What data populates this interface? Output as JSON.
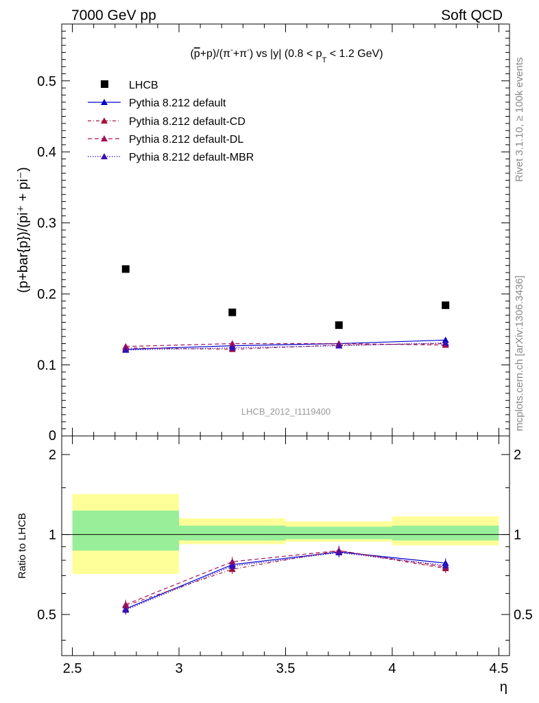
{
  "header": {
    "left": "7000 GeV pp",
    "right": "Soft QCD"
  },
  "side_labels": {
    "rivet": "Rivet 3.1.10, ≥ 100k events",
    "mcplots": "mcplots.cern.ch [arXiv:1306.3436]"
  },
  "chart_data": [
    {
      "panel": "main",
      "type": "scatter",
      "title_parts": {
        "pre": "(",
        "pbar": "p",
        "mid": "+p)/(π",
        "m1": "-",
        "plus": "+π",
        "m2": "-",
        "post": ") vs |y| (0.8 < p",
        "sub": "T",
        "tail": " < 1.2 GeV)"
      },
      "ylabel": "(p+bar{p})/(pi⁺ + pi⁻)",
      "xlabel": "",
      "ylim": [
        0,
        0.58
      ],
      "xlim": [
        2.45,
        4.55
      ],
      "yticks": [
        0.1,
        0.2,
        0.3,
        0.4,
        0.5
      ],
      "ytick_labels": [
        "0.1",
        "0.2",
        "0.3",
        "0.4",
        "0.5"
      ],
      "y0_label": "0",
      "watermark": "LHCB_2012_I1119400",
      "legend_position": "top-left",
      "bins": [
        [
          2.5,
          3.0
        ],
        [
          3.0,
          3.5
        ],
        [
          3.5,
          4.0
        ],
        [
          4.0,
          4.5
        ]
      ],
      "x": [
        2.75,
        3.25,
        3.75,
        4.25
      ],
      "data": {
        "name": "LHCB",
        "values": [
          0.235,
          0.174,
          0.156,
          0.184
        ],
        "color": "#000000"
      },
      "series": [
        {
          "name": "Pythia 8.212 default",
          "values": [
            0.122,
            0.127,
            0.13,
            0.135
          ],
          "color": "#0000cc",
          "dash": ""
        },
        {
          "name": "Pythia 8.212 default-CD",
          "values": [
            0.124,
            0.122,
            0.128,
            0.13
          ],
          "color": "#a0143a",
          "dash": "5,3,1,3"
        },
        {
          "name": "Pythia 8.212 default-DL",
          "values": [
            0.126,
            0.13,
            0.13,
            0.128
          ],
          "color": "#a0105a",
          "dash": "6,4"
        },
        {
          "name": "Pythia 8.212 default-MBR",
          "values": [
            0.121,
            0.124,
            0.127,
            0.131
          ],
          "color": "#3a10b0",
          "dash": "1.5,2"
        }
      ]
    },
    {
      "panel": "ratio",
      "type": "line",
      "ylabel": "Ratio to LHCB",
      "xlabel": "η",
      "ylim": [
        0.35,
        2.35
      ],
      "xlim": [
        2.45,
        4.55
      ],
      "xticks": [
        2.5,
        3.0,
        3.5,
        4.0,
        4.5
      ],
      "xtick_labels": [
        "2.5",
        "3",
        "3.5",
        "4",
        "4.5"
      ],
      "yticks": [
        0.5,
        1.0,
        2.0
      ],
      "ytick_labels": [
        "0.5",
        "1",
        "2"
      ],
      "bins": [
        [
          2.5,
          3.0
        ],
        [
          3.0,
          3.5
        ],
        [
          3.5,
          4.0
        ],
        [
          4.0,
          4.5
        ]
      ],
      "x": [
        2.75,
        3.25,
        3.75,
        4.25
      ],
      "band_stat": [
        [
          0.87,
          1.23
        ],
        [
          0.95,
          1.08
        ],
        [
          0.96,
          1.07
        ],
        [
          0.95,
          1.08
        ]
      ],
      "band_total": [
        [
          0.71,
          1.42
        ],
        [
          0.92,
          1.15
        ],
        [
          0.94,
          1.12
        ],
        [
          0.91,
          1.17
        ]
      ],
      "series": [
        {
          "name": "Pythia 8.212 default",
          "values": [
            0.525,
            0.77,
            0.86,
            0.78
          ],
          "color": "#0000cc",
          "dash": ""
        },
        {
          "name": "Pythia 8.212 default-CD",
          "values": [
            0.54,
            0.74,
            0.87,
            0.745
          ],
          "color": "#a0143a",
          "dash": "5,3,1,3"
        },
        {
          "name": "Pythia 8.212 default-DL",
          "values": [
            0.545,
            0.79,
            0.87,
            0.755
          ],
          "color": "#a0105a",
          "dash": "6,4"
        },
        {
          "name": "Pythia 8.212 default-MBR",
          "values": [
            0.52,
            0.76,
            0.855,
            0.765
          ],
          "color": "#3a10b0",
          "dash": "1.5,2"
        }
      ]
    }
  ]
}
